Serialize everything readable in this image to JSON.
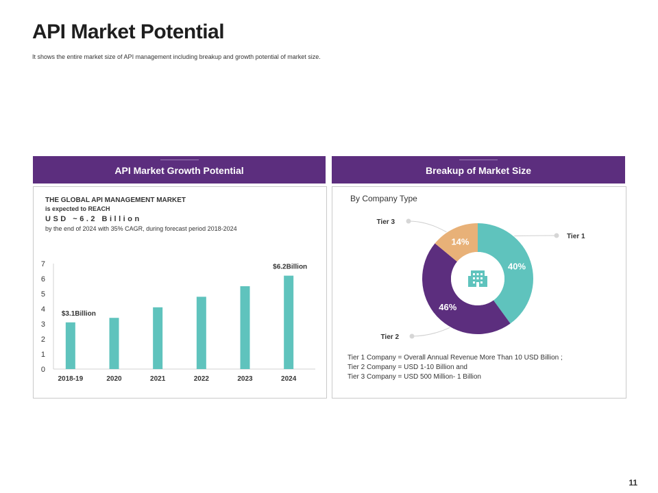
{
  "slide": {
    "title": "API Market Potential",
    "subtitle": "It shows the entire market size of API management including breakup and growth potential of market size.",
    "page_number": "11"
  },
  "left_panel": {
    "header": "API Market Growth Potential",
    "intro_line1": "THE GLOBAL API MANAGEMENT  MARKET",
    "intro_line2": "is expected to REACH",
    "intro_line3": "USD ~6.2 Billion",
    "intro_line4": "by the end of 2024 with 35% CAGR, during forecast period 2018-2024"
  },
  "right_panel": {
    "header": "Breakup of  Market Size",
    "company_label": "By Company Type",
    "center_icon": "building-icon",
    "notes": [
      "Tier 1 Company = Overall Annual Revenue More Than 10 USD Billion ;",
      "Tier 2 Company = USD 1-10 Billion and",
      "Tier 3 Company = USD 500 Million-  1 Billion"
    ]
  },
  "colors": {
    "purple": "#5c2e7e",
    "teal": "#5fc3bd",
    "orange": "#e8b178"
  },
  "chart_data": [
    {
      "type": "bar",
      "title": "",
      "xlabel": "",
      "ylabel": "",
      "categories": [
        "2018-19",
        "2020",
        "2021",
        "2022",
        "2023",
        "2024"
      ],
      "values": [
        3.1,
        3.4,
        4.1,
        4.8,
        5.5,
        6.2
      ],
      "ylim": [
        0,
        7
      ],
      "yticks": [
        "0",
        "1",
        "2",
        "3",
        "4",
        "5",
        "6",
        "7"
      ],
      "annotations": [
        {
          "index": 0,
          "text": "$3.1Billion"
        },
        {
          "index": 5,
          "text": "$6.2Billion"
        }
      ],
      "grid": false,
      "color": "#5fc3bd"
    },
    {
      "type": "pie",
      "style": "donut",
      "labels": [
        "Tier 1",
        "Tier 2",
        "Tier 3"
      ],
      "values": [
        40,
        46,
        14
      ],
      "value_labels": [
        "40%",
        "46%",
        "14%"
      ],
      "colors": [
        "#5fc3bd",
        "#5c2e7e",
        "#e8b178"
      ]
    }
  ]
}
